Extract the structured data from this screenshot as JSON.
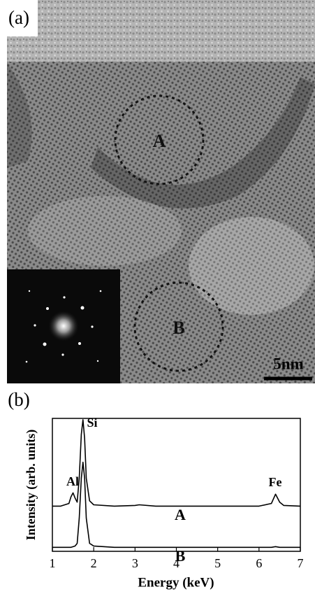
{
  "panel_a": {
    "label": "(a)",
    "regions": [
      "A",
      "B"
    ],
    "scale_bar": "5nm"
  },
  "panel_b_label": "(b)",
  "chart_data": {
    "type": "line",
    "xlabel": "Energy (keV)",
    "ylabel": "Intensity (arb. units)",
    "annotations": [
      "Al",
      "Si",
      "Fe"
    ],
    "x": [
      1.0,
      1.2,
      1.4,
      1.45,
      1.5,
      1.55,
      1.6,
      1.65,
      1.7,
      1.74,
      1.78,
      1.82,
      1.9,
      2.0,
      2.5,
      3.0,
      3.1,
      3.5,
      4,
      5,
      6,
      6.3,
      6.4,
      6.5,
      6.6,
      7
    ],
    "series": [
      {
        "name": "A",
        "color": "#000000",
        "values": [
          3.4,
          3.4,
          3.6,
          4.1,
          4.4,
          4.0,
          3.7,
          5.5,
          8.8,
          9.9,
          8.5,
          5.5,
          3.8,
          3.5,
          3.4,
          3.45,
          3.5,
          3.4,
          3.4,
          3.4,
          3.4,
          3.6,
          4.3,
          3.7,
          3.45,
          3.4
        ]
      },
      {
        "name": "B",
        "color": "#000000",
        "values": [
          0.3,
          0.3,
          0.3,
          0.3,
          0.35,
          0.4,
          0.6,
          2.5,
          5.5,
          6.7,
          5.5,
          2.5,
          0.6,
          0.4,
          0.3,
          0.3,
          0.3,
          0.3,
          0.3,
          0.3,
          0.3,
          0.3,
          0.35,
          0.3,
          0.3,
          0.3
        ]
      }
    ],
    "xlim": [
      1,
      7
    ],
    "xticks": [
      1,
      2,
      3,
      4,
      5,
      6,
      7
    ],
    "ylim": [
      0,
      10
    ]
  }
}
